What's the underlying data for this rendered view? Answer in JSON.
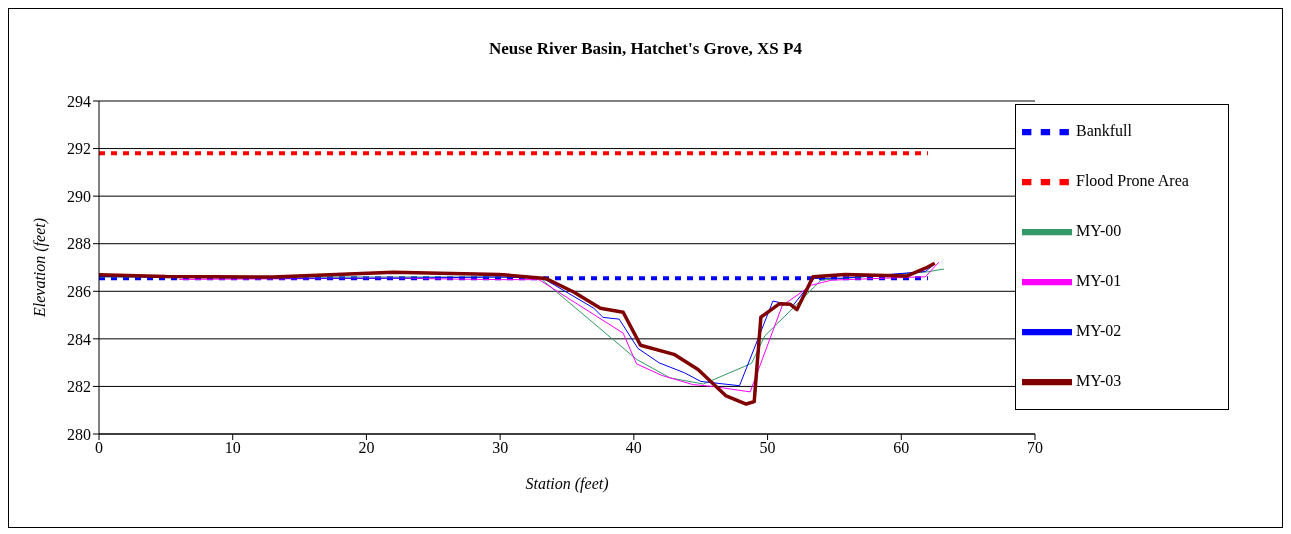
{
  "chart_data": {
    "type": "line",
    "title": "Neuse River Basin, Hatchet's Grove, XS P4",
    "xlabel": "Station (feet)",
    "ylabel": "Elevation (feet)",
    "xlim": [
      0,
      70
    ],
    "xticks": [
      0,
      10,
      20,
      30,
      40,
      50,
      60,
      70
    ],
    "ylim": [
      280,
      294
    ],
    "yticks": [
      280,
      282,
      284,
      286,
      288,
      290,
      292,
      294
    ],
    "grid": "y",
    "legend": "top right",
    "marker": "none",
    "series": [
      {
        "name": "Bankfull",
        "color": "#0000ff",
        "line_style": "dashed",
        "x": [
          0,
          62
        ],
        "values": [
          286.55,
          286.55
        ]
      },
      {
        "name": "Flood Prone Area",
        "color": "#ff0000",
        "line_style": "dashed",
        "x": [
          0,
          62
        ],
        "values": [
          291.8,
          291.8
        ]
      },
      {
        "name": "MY-00",
        "color": "#339966",
        "line_style": "solid",
        "x": [
          0,
          22,
          29.9,
          33.0,
          40.2,
          42.7,
          45.2,
          48.8,
          49.8,
          52.1,
          54.0,
          62.0,
          63.2
        ],
        "values": [
          286.6,
          286.6,
          286.6,
          286.55,
          283.14,
          282.36,
          282.1,
          282.97,
          284.13,
          285.4,
          286.47,
          286.82,
          286.94
        ]
      },
      {
        "name": "MY-01",
        "color": "#ff00ff",
        "line_style": "solid",
        "x": [
          6,
          22,
          29.9,
          32.9,
          39.2,
          40.2,
          42.1,
          44.4,
          45.9,
          48.7,
          51.1,
          53.3,
          54.8,
          61.8,
          62.8
        ],
        "values": [
          286.5,
          286.55,
          286.49,
          286.49,
          284.24,
          282.95,
          282.46,
          282.08,
          282.0,
          281.77,
          285.4,
          286.26,
          286.47,
          286.61,
          287.22
        ]
      },
      {
        "name": "MY-02",
        "color": "#0000ff",
        "line_style": "solid",
        "x": [
          0,
          13,
          22,
          29.9,
          33.2,
          37.0,
          37.7,
          38.9,
          40.3,
          41.9,
          43.8,
          45.0,
          47.9,
          50.4,
          51.9,
          53.5,
          55.6,
          61.8,
          62.4
        ],
        "values": [
          286.62,
          286.55,
          286.55,
          286.6,
          286.55,
          285.29,
          284.9,
          284.83,
          283.6,
          282.99,
          282.57,
          282.21,
          282.03,
          285.59,
          285.4,
          286.54,
          286.55,
          286.83,
          287.1
        ]
      },
      {
        "name": "MY-03",
        "color": "#800000",
        "line_style": "solid",
        "x": [
          0,
          5,
          13,
          22,
          29.9,
          33.4,
          35.5,
          37.5,
          39.2,
          40.5,
          43.0,
          44.8,
          46.9,
          48.4,
          49.0,
          49.5,
          50.9,
          51.7,
          52.2,
          53.4,
          55.8,
          60.4,
          61.8,
          62.5
        ],
        "values": [
          286.7,
          286.62,
          286.6,
          286.8,
          286.71,
          286.54,
          285.97,
          285.29,
          285.12,
          283.73,
          283.35,
          282.71,
          281.6,
          281.26,
          281.36,
          284.91,
          285.48,
          285.45,
          285.23,
          286.61,
          286.71,
          286.64,
          286.97,
          287.18
        ]
      }
    ]
  }
}
